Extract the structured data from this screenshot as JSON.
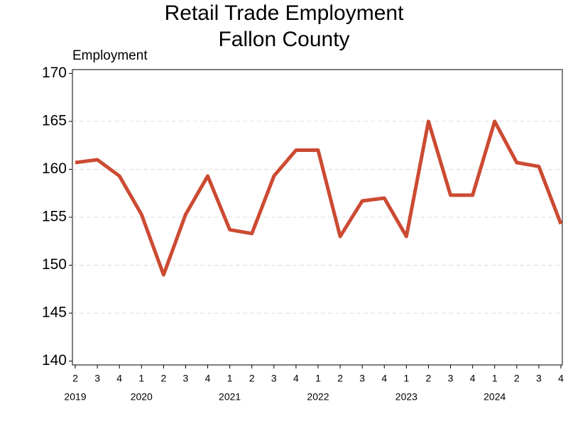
{
  "chart_data": {
    "type": "line",
    "title": [
      "Retail Trade Employment",
      "Fallon County"
    ],
    "y_label": "Employment",
    "categories": [
      "2",
      "3",
      "4",
      "1",
      "2",
      "3",
      "4",
      "1",
      "2",
      "3",
      "4",
      "1",
      "2",
      "3",
      "4",
      "1",
      "2",
      "3",
      "4",
      "1",
      "2",
      "3",
      "4"
    ],
    "years": [
      "2019",
      null,
      null,
      "2020",
      null,
      null,
      null,
      "2021",
      null,
      null,
      null,
      "2022",
      null,
      null,
      null,
      "2023",
      null,
      null,
      null,
      "2024",
      null,
      null,
      null
    ],
    "series": [
      {
        "color": "#cc4a32",
        "values": [
          160.7,
          161,
          159.3,
          155.3,
          149,
          155.3,
          159.3,
          153.7,
          153.3,
          159.3,
          162,
          162,
          153,
          156.7,
          157,
          153,
          165,
          157.3,
          157.3,
          165,
          160.7,
          160.3,
          154.3
        ]
      }
    ],
    "ylim": [
      139.6,
      170.4
    ],
    "yticks": [
      140,
      145,
      150,
      155,
      160,
      165,
      170
    ],
    "grid": true
  }
}
